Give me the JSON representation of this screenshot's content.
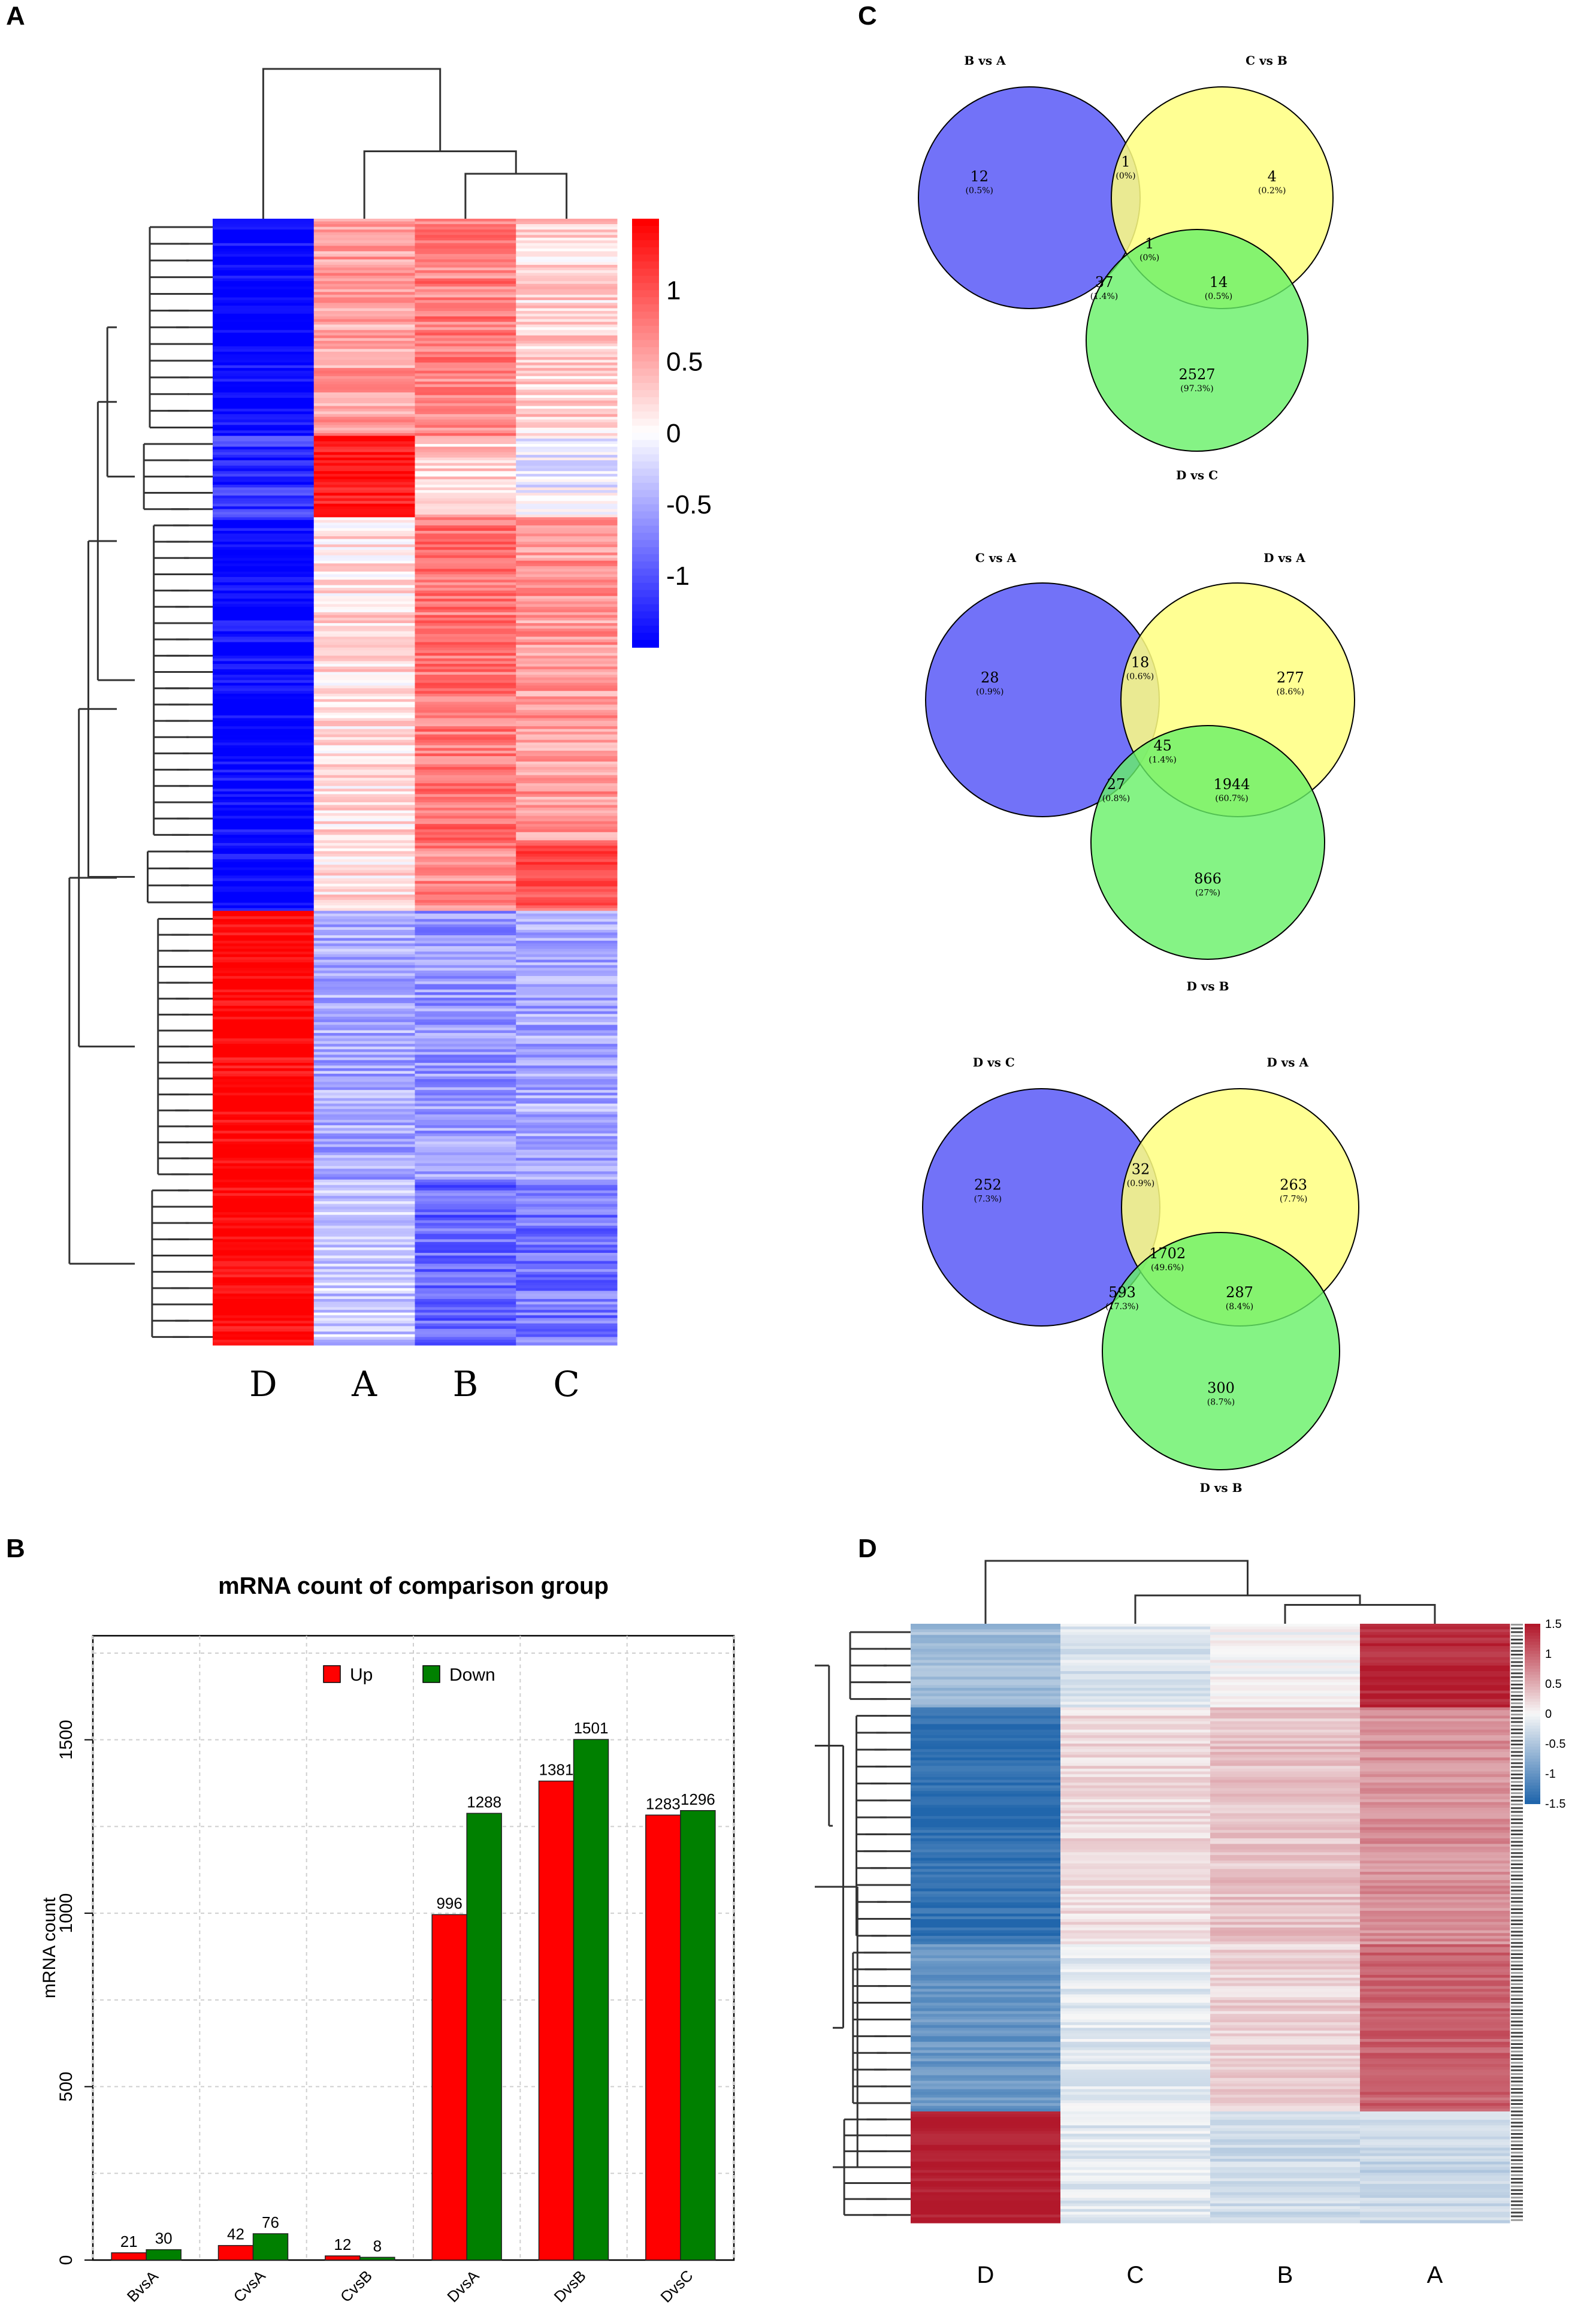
{
  "panels": {
    "a": {
      "letter": "A"
    },
    "b": {
      "letter": "B"
    },
    "c": {
      "letter": "C"
    },
    "d": {
      "letter": "D"
    }
  },
  "chart_data": [
    {
      "type": "heatmap",
      "id": "A",
      "columns": [
        "D",
        "A",
        "B",
        "C"
      ],
      "colorbar": {
        "ticks": [
          "1",
          "0.5",
          "0",
          "-0.5",
          "-1"
        ],
        "tick_values": [
          1,
          0.5,
          0,
          -0.5,
          -1
        ],
        "range": [
          -1.5,
          1.5
        ],
        "colors": [
          "#0000ff",
          "#ffffff",
          "#ff0000"
        ]
      },
      "row_blocks": [
        {
          "D": -1.5,
          "A": 0.55,
          "B": 0.75,
          "C": 0.25,
          "rows": 80
        },
        {
          "D": -1.2,
          "A": 1.4,
          "B": 0.3,
          "C": -0.1,
          "rows": 30
        },
        {
          "D": -1.5,
          "A": 0.2,
          "B": 0.8,
          "C": 0.6,
          "rows": 120
        },
        {
          "D": -1.5,
          "A": 0.2,
          "B": 0.7,
          "C": 1.0,
          "rows": 25
        },
        {
          "D": 1.5,
          "A": -0.5,
          "B": -0.6,
          "C": -0.5,
          "rows": 100
        },
        {
          "D": 1.5,
          "A": -0.3,
          "B": -0.9,
          "C": -0.8,
          "rows": 60
        }
      ]
    },
    {
      "type": "venn",
      "id": "C1",
      "sets": [
        "B vs A",
        "C vs B",
        "D vs C"
      ],
      "regions": [
        {
          "only": "B vs A",
          "count": "12",
          "pct": "(0.5%)"
        },
        {
          "only": "C vs B",
          "count": "4",
          "pct": "(0.2%)"
        },
        {
          "only": "D vs C",
          "count": "2527",
          "pct": "(97.3%)"
        },
        {
          "sets": "B vs A & C vs B",
          "count": "1",
          "pct": "(0%)"
        },
        {
          "sets": "B vs A & D vs C",
          "count": "37",
          "pct": "(1.4%)"
        },
        {
          "sets": "C vs B & D vs C",
          "count": "14",
          "pct": "(0.5%)"
        },
        {
          "sets": "all",
          "count": "1",
          "pct": "(0%)"
        }
      ]
    },
    {
      "type": "venn",
      "id": "C2",
      "sets": [
        "C vs A",
        "D vs A",
        "D vs B"
      ],
      "regions": [
        {
          "only": "C vs A",
          "count": "28",
          "pct": "(0.9%)"
        },
        {
          "only": "D vs A",
          "count": "277",
          "pct": "(8.6%)"
        },
        {
          "only": "D vs B",
          "count": "866",
          "pct": "(27%)"
        },
        {
          "sets": "C vs A & D vs A",
          "count": "18",
          "pct": "(0.6%)"
        },
        {
          "sets": "C vs A & D vs B",
          "count": "27",
          "pct": "(0.8%)"
        },
        {
          "sets": "D vs A & D vs B",
          "count": "1944",
          "pct": "(60.7%)"
        },
        {
          "sets": "all",
          "count": "45",
          "pct": "(1.4%)"
        }
      ]
    },
    {
      "type": "venn",
      "id": "C3",
      "sets": [
        "D vs C",
        "D vs A",
        "D vs B"
      ],
      "regions": [
        {
          "only": "D vs C",
          "count": "252",
          "pct": "(7.3%)"
        },
        {
          "only": "D vs A",
          "count": "263",
          "pct": "(7.7%)"
        },
        {
          "only": "D vs B",
          "count": "300",
          "pct": "(8.7%)"
        },
        {
          "sets": "D vs C & D vs A",
          "count": "32",
          "pct": "(0.9%)"
        },
        {
          "sets": "D vs C & D vs B",
          "count": "593",
          "pct": "(17.3%)"
        },
        {
          "sets": "D vs A & D vs B",
          "count": "287",
          "pct": "(8.4%)"
        },
        {
          "sets": "all",
          "count": "1702",
          "pct": "(49.6%)"
        }
      ]
    },
    {
      "type": "bar",
      "id": "B",
      "title": "mRNA count of comparison group",
      "xlabel": "",
      "ylabel": "mRNA count",
      "ylim": [
        0,
        1800
      ],
      "yticks": [
        0,
        500,
        1000,
        1500
      ],
      "categories": [
        "BvsA",
        "CvsA",
        "CvsB",
        "DvsA",
        "DvsB",
        "DvsC"
      ],
      "series": [
        {
          "name": "Up",
          "color": "#ff0000",
          "values": [
            21,
            42,
            12,
            996,
            1381,
            1283
          ]
        },
        {
          "name": "Down",
          "color": "#008000",
          "values": [
            30,
            76,
            8,
            1288,
            1501,
            1296
          ]
        }
      ],
      "legend": "top-center",
      "grid": true
    },
    {
      "type": "heatmap",
      "id": "D",
      "columns": [
        "D",
        "C",
        "B",
        "A"
      ],
      "colorbar": {
        "ticks": [
          "1.5",
          "1",
          "0.5",
          "0",
          "-0.5",
          "-1",
          "-1.5"
        ],
        "tick_values": [
          1.5,
          1,
          0.5,
          0,
          -0.5,
          -1,
          -1.5
        ],
        "range": [
          -1.5,
          1.5
        ],
        "colors": [
          "#2166ac",
          "#f7f7f7",
          "#b2182b"
        ]
      },
      "row_blocks": [
        {
          "D": -0.6,
          "C": -0.2,
          "B": 0.0,
          "A": 1.4,
          "rows": 30
        },
        {
          "D": -1.4,
          "C": 0.2,
          "B": 0.35,
          "A": 0.7,
          "rows": 85
        },
        {
          "D": -1.0,
          "C": -0.15,
          "B": 0.25,
          "A": 1.0,
          "rows": 60
        },
        {
          "D": 1.5,
          "C": -0.15,
          "B": -0.3,
          "A": -0.35,
          "rows": 40
        }
      ]
    }
  ]
}
